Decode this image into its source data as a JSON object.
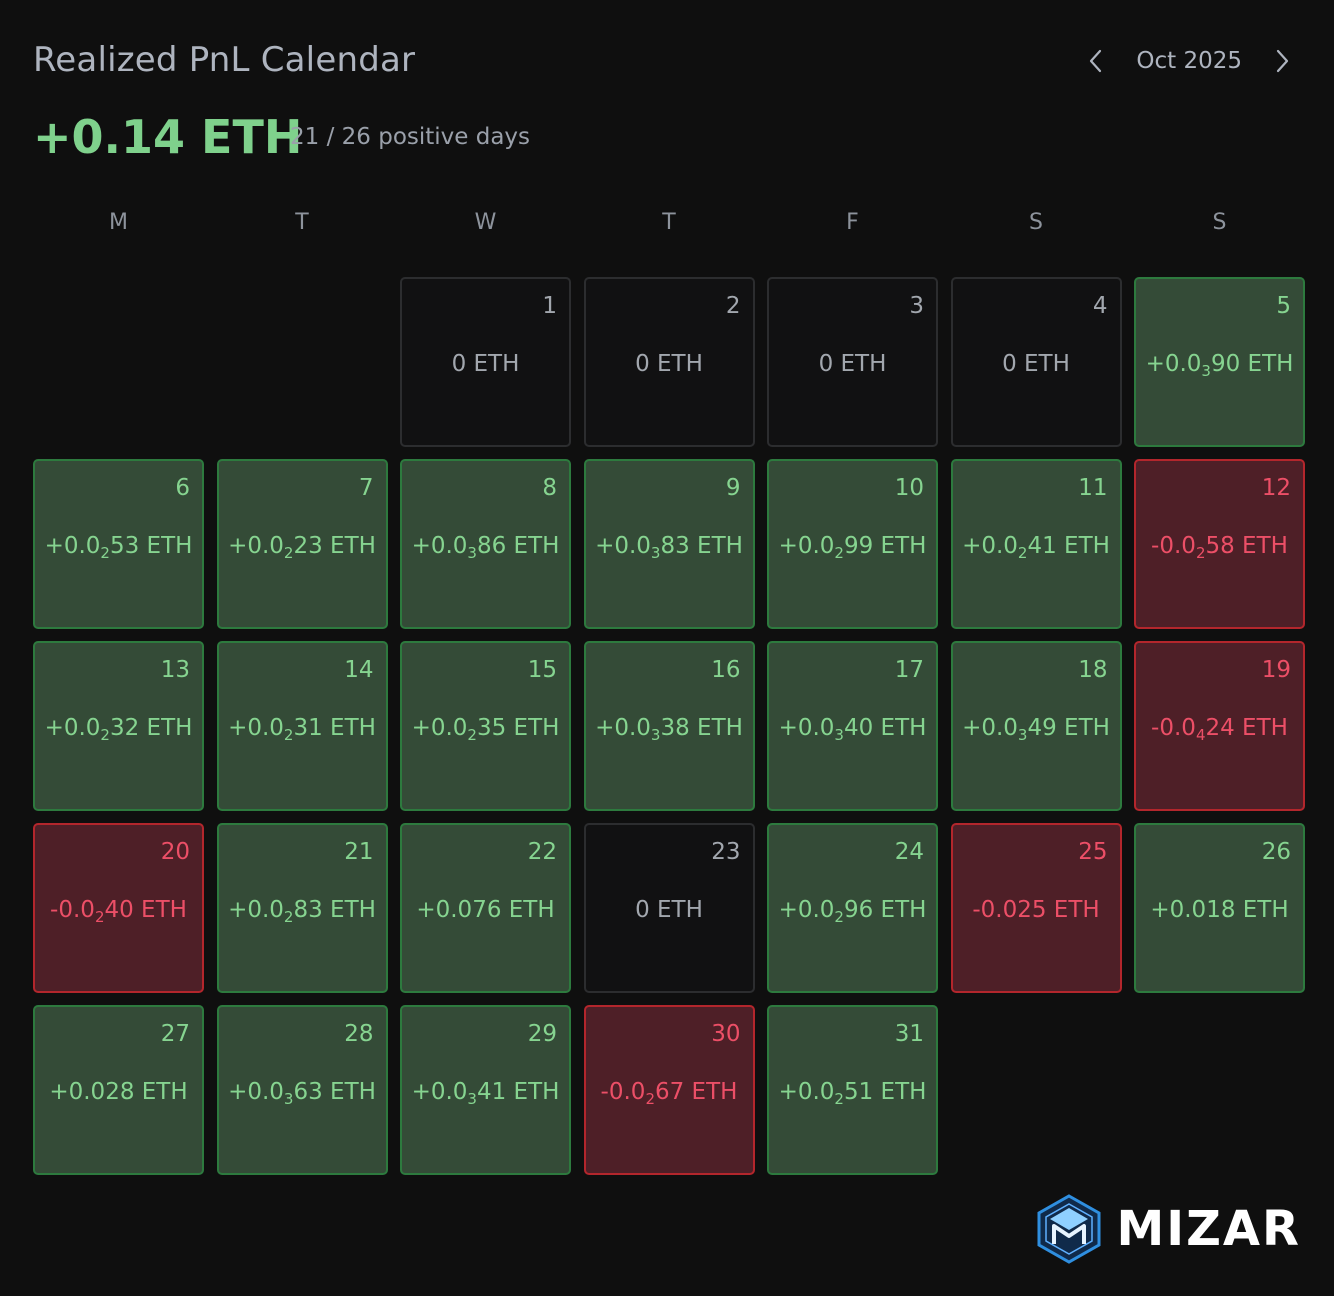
{
  "header": {
    "title": "Realized PnL Calendar",
    "month_label": "Oct 2025",
    "prev_icon": "chevron-left-icon",
    "next_icon": "chevron-right-icon"
  },
  "summary": {
    "total": "+0.14 ETH",
    "positive_days": "21 / 26 positive days"
  },
  "weekdays": [
    "M",
    "T",
    "W",
    "T",
    "F",
    "S",
    "S"
  ],
  "calendar": {
    "leading_empty": 2,
    "days": [
      {
        "day": "1",
        "status": "zero",
        "parts": [
          "0 ETH"
        ]
      },
      {
        "day": "2",
        "status": "zero",
        "parts": [
          "0 ETH"
        ]
      },
      {
        "day": "3",
        "status": "zero",
        "parts": [
          "0 ETH"
        ]
      },
      {
        "day": "4",
        "status": "zero",
        "parts": [
          "0 ETH"
        ]
      },
      {
        "day": "5",
        "status": "positive",
        "parts": [
          "+0.0",
          "3",
          "90 ETH"
        ]
      },
      {
        "day": "6",
        "status": "positive",
        "parts": [
          "+0.0",
          "2",
          "53 ETH"
        ]
      },
      {
        "day": "7",
        "status": "positive",
        "parts": [
          "+0.0",
          "2",
          "23 ETH"
        ]
      },
      {
        "day": "8",
        "status": "positive",
        "parts": [
          "+0.0",
          "3",
          "86 ETH"
        ]
      },
      {
        "day": "9",
        "status": "positive",
        "parts": [
          "+0.0",
          "3",
          "83 ETH"
        ]
      },
      {
        "day": "10",
        "status": "positive",
        "parts": [
          "+0.0",
          "2",
          "99 ETH"
        ]
      },
      {
        "day": "11",
        "status": "positive",
        "parts": [
          "+0.0",
          "2",
          "41 ETH"
        ]
      },
      {
        "day": "12",
        "status": "negative",
        "parts": [
          "-0.0",
          "2",
          "58 ETH"
        ]
      },
      {
        "day": "13",
        "status": "positive",
        "parts": [
          "+0.0",
          "2",
          "32 ETH"
        ]
      },
      {
        "day": "14",
        "status": "positive",
        "parts": [
          "+0.0",
          "2",
          "31 ETH"
        ]
      },
      {
        "day": "15",
        "status": "positive",
        "parts": [
          "+0.0",
          "2",
          "35 ETH"
        ]
      },
      {
        "day": "16",
        "status": "positive",
        "parts": [
          "+0.0",
          "3",
          "38 ETH"
        ]
      },
      {
        "day": "17",
        "status": "positive",
        "parts": [
          "+0.0",
          "3",
          "40 ETH"
        ]
      },
      {
        "day": "18",
        "status": "positive",
        "parts": [
          "+0.0",
          "3",
          "49 ETH"
        ]
      },
      {
        "day": "19",
        "status": "negative",
        "parts": [
          "-0.0",
          "4",
          "24 ETH"
        ]
      },
      {
        "day": "20",
        "status": "negative",
        "parts": [
          "-0.0",
          "2",
          "40 ETH"
        ]
      },
      {
        "day": "21",
        "status": "positive",
        "parts": [
          "+0.0",
          "2",
          "83 ETH"
        ]
      },
      {
        "day": "22",
        "status": "positive",
        "parts": [
          "+0.076 ETH"
        ]
      },
      {
        "day": "23",
        "status": "zero",
        "parts": [
          "0 ETH"
        ]
      },
      {
        "day": "24",
        "status": "positive",
        "parts": [
          "+0.0",
          "2",
          "96 ETH"
        ]
      },
      {
        "day": "25",
        "status": "negative",
        "parts": [
          "-0.025 ETH"
        ]
      },
      {
        "day": "26",
        "status": "positive",
        "parts": [
          "+0.018 ETH"
        ]
      },
      {
        "day": "27",
        "status": "positive",
        "parts": [
          "+0.028 ETH"
        ]
      },
      {
        "day": "28",
        "status": "positive",
        "parts": [
          "+0.0",
          "3",
          "63 ETH"
        ]
      },
      {
        "day": "29",
        "status": "positive",
        "parts": [
          "+0.0",
          "3",
          "41 ETH"
        ]
      },
      {
        "day": "30",
        "status": "negative",
        "parts": [
          "-0.0",
          "2",
          "67 ETH"
        ]
      },
      {
        "day": "31",
        "status": "positive",
        "parts": [
          "+0.0",
          "2",
          "51 ETH"
        ]
      }
    ]
  },
  "brand": {
    "name": "MIZAR",
    "logo_icon": "mizar-logo-icon"
  },
  "colors": {
    "background": "#0f0f0f",
    "positive": "#86d490",
    "negative": "#ec4f67",
    "positive_cell_bg": "#344b37",
    "negative_cell_bg": "#4e1f27",
    "brand_blue": "#2f8fe0"
  }
}
